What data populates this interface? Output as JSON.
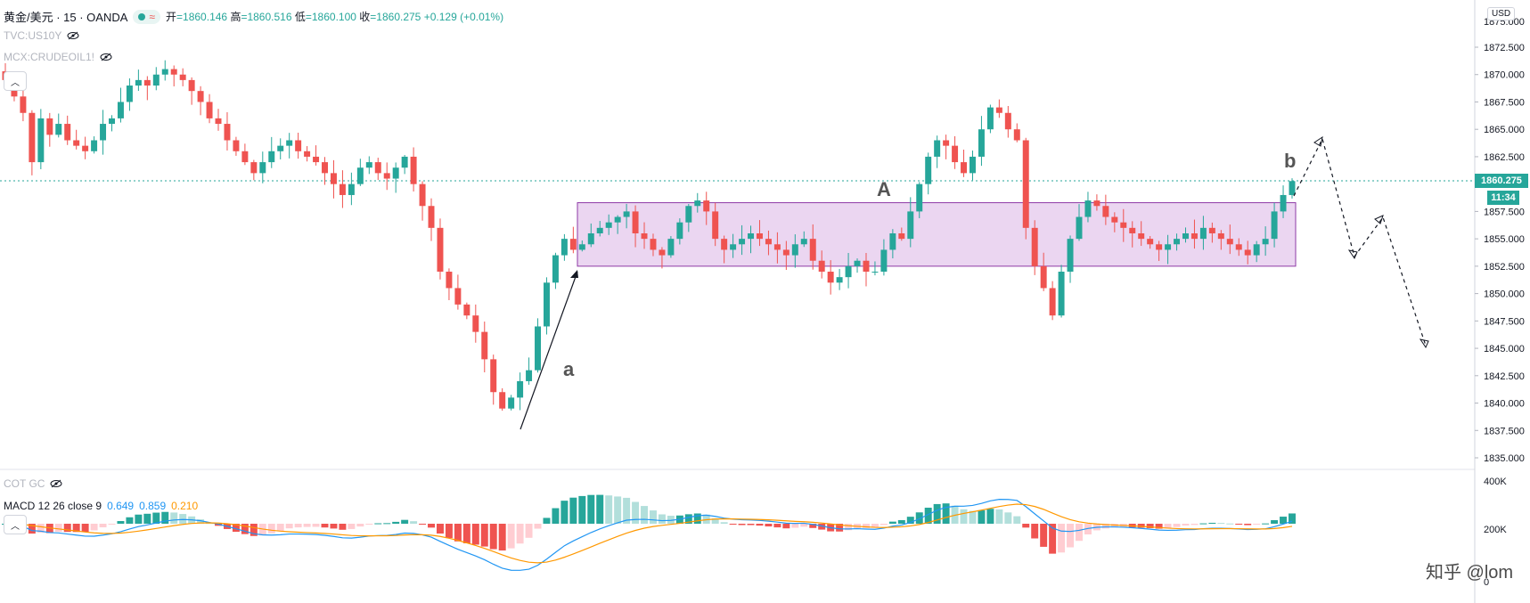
{
  "header": {
    "symbol": "黄金/美元 · 15 · OANDA",
    "open_label": "开",
    "open": "=1860.146",
    "high_label": "高",
    "high": "=1860.516",
    "low_label": "低",
    "low": "=1860.100",
    "close_label": "收",
    "close": "=1860.275",
    "change": "+0.129 (+0.01%)",
    "overlays": [
      "TVC:US10Y",
      "MCX:CRUDEOIL1!"
    ]
  },
  "macd_header": {
    "name": "COT GC",
    "params": "MACD 12 26 close 9",
    "v1": "0.649",
    "v2": "0.859",
    "v3": "0.210"
  },
  "price_axis": {
    "currency": "USD",
    "ticks": [
      "1872.500",
      "1870.000",
      "1867.500",
      "1865.000",
      "1862.500",
      "1857.500",
      "1855.000",
      "1852.500",
      "1850.000",
      "1847.500",
      "1845.000",
      "1842.500",
      "1840.000",
      "1837.500",
      "1835.000"
    ],
    "last_price": "1860.275",
    "countdown": "11:34",
    "top_partial": "1875.000"
  },
  "macd_axis": {
    "ticks": [
      "400K",
      "200K",
      "0"
    ]
  },
  "annotations": {
    "A": "A",
    "a": "a",
    "b": "b"
  },
  "watermark": "知乎 @lom",
  "colors": {
    "up": "#26a69a",
    "down": "#ef5350",
    "box_fill": "#e7cfee",
    "box_stroke": "#8e3aa6",
    "macd": "#2196f3",
    "signal": "#ff9800"
  },
  "chart_data": [
    {
      "type": "candlestick",
      "title": "黄金/美元 · 15 · OANDA",
      "ylim": [
        1834.0,
        1876.0
      ],
      "last": 1860.275,
      "close_series": [
        1869.5,
        1868.0,
        1866.5,
        1862.0,
        1866.0,
        1864.5,
        1865.5,
        1864.0,
        1863.5,
        1863.0,
        1864.0,
        1865.5,
        1866.0,
        1867.5,
        1869.0,
        1869.5,
        1869.0,
        1870.0,
        1870.5,
        1870.0,
        1869.5,
        1868.5,
        1867.5,
        1866.0,
        1865.5,
        1864.0,
        1863.0,
        1862.0,
        1861.0,
        1862.0,
        1863.0,
        1863.5,
        1864.0,
        1863.0,
        1862.5,
        1862.0,
        1861.0,
        1860.0,
        1859.0,
        1860.0,
        1861.5,
        1862.0,
        1861.0,
        1860.5,
        1861.5,
        1862.5,
        1860.0,
        1858.0,
        1856.0,
        1852.0,
        1850.5,
        1849.0,
        1848.0,
        1846.5,
        1844.0,
        1841.0,
        1839.5,
        1840.5,
        1842.0,
        1843.0,
        1847.0,
        1851.0,
        1853.5,
        1855.0,
        1854.0,
        1854.5,
        1855.5,
        1856.0,
        1856.5,
        1857.0,
        1857.5,
        1855.5,
        1855.0,
        1854.0,
        1853.5,
        1855.0,
        1856.5,
        1858.0,
        1858.5,
        1857.5,
        1855.0,
        1854.0,
        1854.5,
        1855.0,
        1855.5,
        1855.0,
        1854.5,
        1854.0,
        1853.5,
        1854.5,
        1855.0,
        1853.0,
        1852.0,
        1851.0,
        1851.5,
        1852.5,
        1853.0,
        1852.0,
        1852.0,
        1854.0,
        1855.5,
        1855.0,
        1857.5,
        1860.0,
        1862.5,
        1864.0,
        1863.5,
        1862.0,
        1861.0,
        1862.5,
        1865.0,
        1867.0,
        1866.5,
        1865.0,
        1864.0,
        1856.0,
        1852.5,
        1850.5,
        1848.0,
        1852.0,
        1855.0,
        1857.0,
        1858.5,
        1858.0,
        1857.0,
        1856.5,
        1856.0,
        1855.5,
        1855.0,
        1854.5,
        1854.0,
        1854.5,
        1855.0,
        1855.5,
        1855.0,
        1856.0,
        1855.5,
        1855.0,
        1854.5,
        1854.0,
        1853.5,
        1854.5,
        1855.0,
        1857.5,
        1859.0,
        1860.275
      ],
      "box": {
        "label": "A",
        "high": 1858.3,
        "low": 1852.5
      },
      "labels": [
        "a",
        "b"
      ]
    },
    {
      "type": "histogram+line",
      "title": "MACD 12 26 close 9",
      "ylim": [
        0,
        400000
      ],
      "ticks": [
        "400K",
        "200K",
        "0"
      ],
      "values_latest": {
        "macd": 0.649,
        "signal": 0.859,
        "hist": 0.21
      }
    }
  ]
}
